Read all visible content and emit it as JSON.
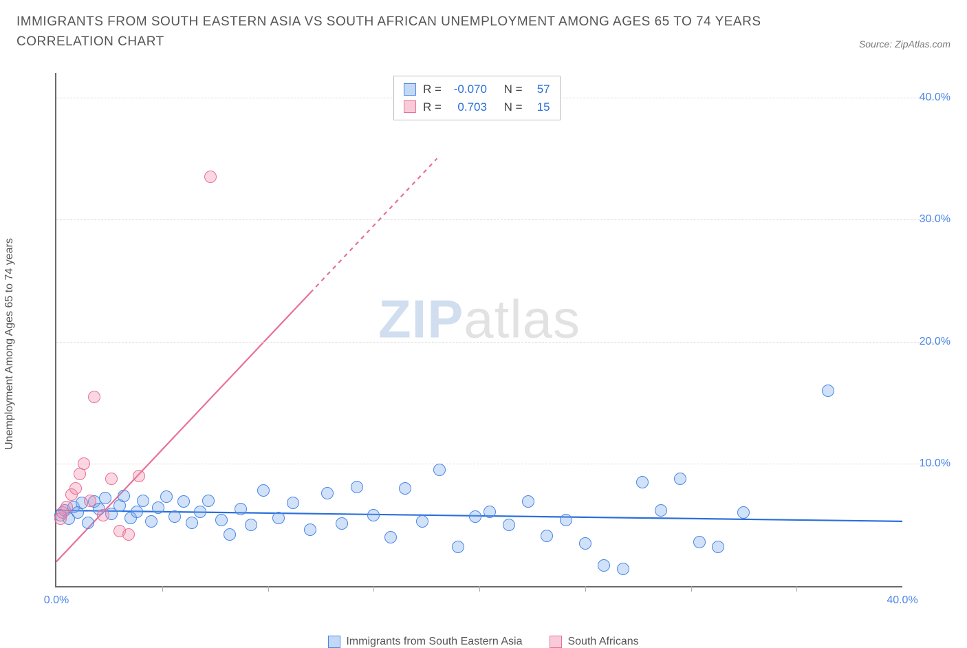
{
  "title": "IMMIGRANTS FROM SOUTH EASTERN ASIA VS SOUTH AFRICAN UNEMPLOYMENT AMONG AGES 65 TO 74 YEARS CORRELATION CHART",
  "source": "Source: ZipAtlas.com",
  "y_axis_label": "Unemployment Among Ages 65 to 74 years",
  "watermark_a": "ZIP",
  "watermark_b": "atlas",
  "chart": {
    "type": "scatter",
    "background_color": "#ffffff",
    "grid_color": "#dddddd",
    "axis_color": "#6a6a6a",
    "tick_label_color": "#4a86e8",
    "xlim": [
      0,
      40
    ],
    "ylim": [
      0,
      42
    ],
    "y_ticks": [
      {
        "v": 10,
        "label": "10.0%"
      },
      {
        "v": 20,
        "label": "20.0%"
      },
      {
        "v": 30,
        "label": "30.0%"
      },
      {
        "v": 40,
        "label": "40.0%"
      }
    ],
    "x_ticks": [
      {
        "v": 0,
        "label": "0.0%"
      },
      {
        "v": 40,
        "label": "40.0%"
      }
    ],
    "x_minor_ticks": [
      5,
      10,
      15,
      20,
      25,
      30,
      35
    ],
    "marker_radius": 9,
    "marker_stroke_width": 1.2,
    "series": [
      {
        "name": "Immigrants from South Eastern Asia",
        "fill": "rgba(120, 170, 235, 0.35)",
        "stroke": "#4a86e8",
        "r_value": "-0.070",
        "n_value": "57",
        "trend": {
          "color": "#2a6fdb",
          "width": 2.2,
          "y0": 6.2,
          "y1": 5.3,
          "dashed_extension": false
        },
        "points": [
          [
            0.2,
            5.8
          ],
          [
            0.4,
            6.2
          ],
          [
            0.6,
            5.5
          ],
          [
            0.8,
            6.5
          ],
          [
            1.0,
            6.0
          ],
          [
            1.2,
            6.8
          ],
          [
            1.5,
            5.2
          ],
          [
            1.8,
            6.9
          ],
          [
            2.0,
            6.3
          ],
          [
            2.3,
            7.2
          ],
          [
            2.6,
            5.9
          ],
          [
            3.0,
            6.6
          ],
          [
            3.2,
            7.4
          ],
          [
            3.5,
            5.6
          ],
          [
            3.8,
            6.1
          ],
          [
            4.1,
            7.0
          ],
          [
            4.5,
            5.3
          ],
          [
            4.8,
            6.4
          ],
          [
            5.2,
            7.3
          ],
          [
            5.6,
            5.7
          ],
          [
            6.0,
            6.9
          ],
          [
            6.4,
            5.2
          ],
          [
            6.8,
            6.1
          ],
          [
            7.2,
            7.0
          ],
          [
            7.8,
            5.4
          ],
          [
            8.2,
            4.2
          ],
          [
            8.7,
            6.3
          ],
          [
            9.2,
            5.0
          ],
          [
            9.8,
            7.8
          ],
          [
            10.5,
            5.6
          ],
          [
            11.2,
            6.8
          ],
          [
            12.0,
            4.6
          ],
          [
            12.8,
            7.6
          ],
          [
            13.5,
            5.1
          ],
          [
            14.2,
            8.1
          ],
          [
            15.0,
            5.8
          ],
          [
            15.8,
            4.0
          ],
          [
            16.5,
            8.0
          ],
          [
            17.3,
            5.3
          ],
          [
            18.1,
            9.5
          ],
          [
            19.0,
            3.2
          ],
          [
            19.8,
            5.7
          ],
          [
            20.5,
            6.1
          ],
          [
            21.4,
            5.0
          ],
          [
            22.3,
            6.9
          ],
          [
            23.2,
            4.1
          ],
          [
            24.1,
            5.4
          ],
          [
            25.0,
            3.5
          ],
          [
            25.9,
            1.7
          ],
          [
            26.8,
            1.4
          ],
          [
            27.7,
            8.5
          ],
          [
            28.6,
            6.2
          ],
          [
            29.5,
            8.8
          ],
          [
            30.4,
            3.6
          ],
          [
            31.3,
            3.2
          ],
          [
            32.5,
            6.0
          ],
          [
            36.5,
            16.0
          ]
        ]
      },
      {
        "name": "South Africans",
        "fill": "rgba(240, 140, 170, 0.35)",
        "stroke": "#e96f98",
        "r_value": "0.703",
        "n_value": "15",
        "trend": {
          "color": "#e96f98",
          "width": 2.2,
          "y0": 2.0,
          "y1_at_x": 12.0,
          "y1": 24.0,
          "dashed_extension": true,
          "dash_to_x": 18.0
        },
        "points": [
          [
            0.2,
            5.5
          ],
          [
            0.3,
            6.0
          ],
          [
            0.5,
            6.5
          ],
          [
            0.7,
            7.5
          ],
          [
            0.9,
            8.0
          ],
          [
            1.1,
            9.2
          ],
          [
            1.3,
            10.0
          ],
          [
            1.6,
            7.0
          ],
          [
            1.8,
            15.5
          ],
          [
            2.2,
            5.8
          ],
          [
            2.6,
            8.8
          ],
          [
            3.0,
            4.5
          ],
          [
            3.4,
            4.2
          ],
          [
            3.9,
            9.0
          ],
          [
            7.3,
            33.5
          ]
        ]
      }
    ]
  },
  "legend_stats": {
    "r_label": "R =",
    "n_label": "N ="
  },
  "bottom_legend": {
    "items": [
      {
        "label": "Immigrants from South Eastern Asia",
        "fill": "rgba(120, 170, 235, 0.45)",
        "stroke": "#4a86e8"
      },
      {
        "label": "South Africans",
        "fill": "rgba(240, 140, 170, 0.45)",
        "stroke": "#e96f98"
      }
    ]
  }
}
